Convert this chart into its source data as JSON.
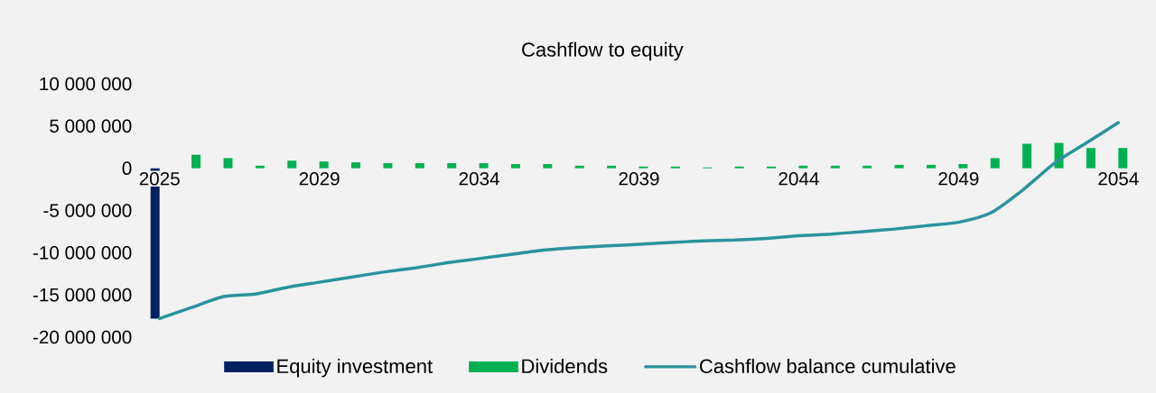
{
  "chart_data": {
    "type": "bar",
    "title": "Cashflow to equity",
    "categories": [
      "2025",
      null,
      null,
      null,
      null,
      "2029",
      null,
      null,
      null,
      null,
      "2034",
      null,
      null,
      null,
      null,
      "2039",
      null,
      null,
      null,
      null,
      "2044",
      null,
      null,
      null,
      null,
      "2049",
      null,
      null,
      null,
      null,
      "2054"
    ],
    "series": [
      {
        "name": "Equity investment",
        "color": "#002060",
        "values": [
          -17800000,
          null,
          null,
          null,
          null,
          null,
          null,
          null,
          null,
          null,
          null,
          null,
          null,
          null,
          null,
          null,
          null,
          null,
          null,
          null,
          null,
          null,
          null,
          null,
          null,
          null,
          null,
          null,
          null,
          null,
          null
        ]
      },
      {
        "name": "Dividends",
        "color": "#00b050",
        "values": [
          null,
          1600000,
          1200000,
          300000,
          900000,
          800000,
          700000,
          600000,
          600000,
          600000,
          600000,
          500000,
          500000,
          300000,
          300000,
          200000,
          200000,
          100000,
          200000,
          200000,
          300000,
          300000,
          300000,
          400000,
          400000,
          500000,
          1200000,
          2900000,
          3000000,
          2400000,
          2400000
        ]
      },
      {
        "name": "Cashflow balance cumulative",
        "type": "line",
        "color": "#2a939b",
        "values": [
          -17800000,
          -16500000,
          -15200000,
          -14900000,
          -14100000,
          -13500000,
          -12900000,
          -12300000,
          -11800000,
          -11200000,
          -10700000,
          -10200000,
          -9700000,
          -9400000,
          -9200000,
          -9000000,
          -8800000,
          -8600000,
          -8500000,
          -8300000,
          -8000000,
          -7800000,
          -7500000,
          -7200000,
          -6800000,
          -6400000,
          -5300000,
          -2600000,
          600000,
          3000000,
          5400000
        ]
      }
    ],
    "ylim": [
      -20000000,
      10000000
    ],
    "yticks": [
      {
        "value": -20000000,
        "label": "-20 000 000"
      },
      {
        "value": -15000000,
        "label": "-15 000 000"
      },
      {
        "value": -10000000,
        "label": "-10 000 000"
      },
      {
        "value": -5000000,
        "label": "-5 000 000"
      },
      0,
      {
        "value": 5000000,
        "label": "5 000 000"
      },
      {
        "value": 10000000,
        "label": "10 000 000"
      }
    ],
    "legend": "bottom",
    "grid": false
  }
}
